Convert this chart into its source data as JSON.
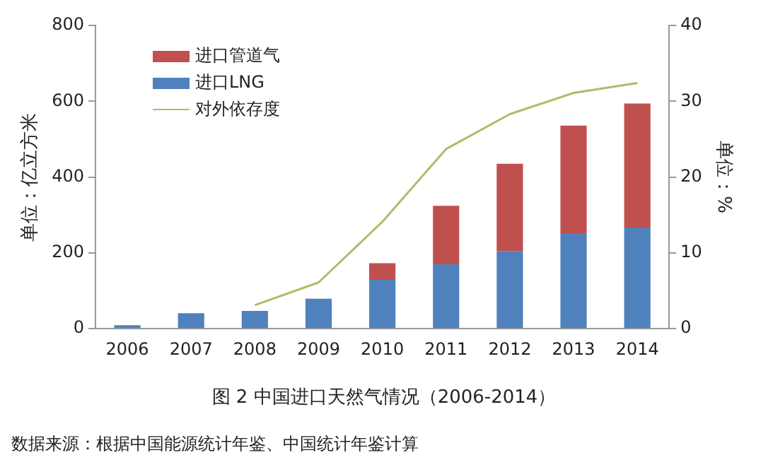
{
  "chart_data": {
    "type": "bar",
    "title": "图 2   中国进口天然气情况（2006-2014）",
    "ylabel": "单位：亿立方米",
    "y2label": "单位：%",
    "annotations": [
      "数据来源：根据中国能源统计年鉴、中国统计年鉴计算"
    ],
    "categories": [
      "2006",
      "2007",
      "2008",
      "2009",
      "2010",
      "2011",
      "2012",
      "2013",
      "2014"
    ],
    "stacked": true,
    "series": [
      {
        "name": "进口LNG",
        "color": "#4f81bd",
        "values": [
          9,
          41,
          47,
          79,
          129,
          170,
          205,
          252,
          267
        ]
      },
      {
        "name": "进口管道气",
        "color": "#c0504d",
        "values": [
          null,
          null,
          null,
          null,
          44,
          154,
          230,
          284,
          327
        ]
      },
      {
        "name": "对外依存度",
        "type": "line",
        "axis": "y2",
        "color": "#b5b96a",
        "marker": "none",
        "values": [
          null,
          null,
          3.1,
          6.1,
          14.1,
          23.7,
          28.3,
          31.1,
          32.4
        ]
      }
    ],
    "ylim": [
      0,
      800
    ],
    "yticks": [
      0,
      200,
      400,
      600,
      800
    ],
    "y2lim": [
      0,
      40
    ],
    "y2ticks": [
      0,
      10,
      20,
      30,
      40
    ],
    "grid": false,
    "legend": "top left"
  }
}
